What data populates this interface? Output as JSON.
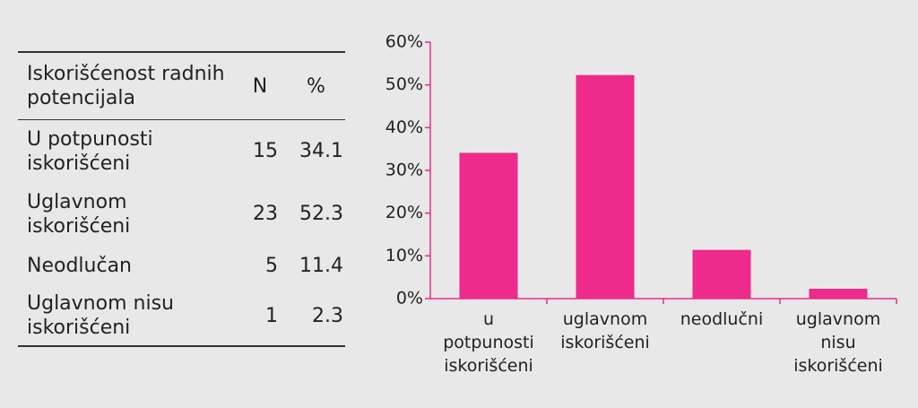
{
  "table": {
    "header": [
      "Iskorišćenost radnih potencijala",
      "N",
      "%"
    ],
    "rows": [
      [
        "U potpunosti iskorišćeni",
        15,
        34.1
      ],
      [
        "Uglavnom iskorišćeni",
        23,
        52.3
      ],
      [
        "Neodlučan",
        5,
        11.4
      ],
      [
        "Uglavnom nisu iskorišćeni",
        1,
        2.3
      ]
    ]
  },
  "chart_data": {
    "type": "bar",
    "categories": [
      "u potpunosti iskorišćeni",
      "uglavnom iskorišćeni",
      "neodlučni",
      "uglavnom nisu iskorišćeni"
    ],
    "values": [
      34.1,
      52.3,
      11.4,
      2.3
    ],
    "color": "#ee2a8c",
    "ylim": [
      0,
      60
    ],
    "yticks": [
      {
        "value": 0,
        "label": "0%"
      },
      {
        "value": 10,
        "label": "10%"
      },
      {
        "value": 20,
        "label": "20%"
      },
      {
        "value": 30,
        "label": "30%"
      },
      {
        "value": 40,
        "label": "40%"
      },
      {
        "value": 50,
        "label": "50%"
      },
      {
        "value": 60,
        "label": "60%"
      }
    ]
  }
}
